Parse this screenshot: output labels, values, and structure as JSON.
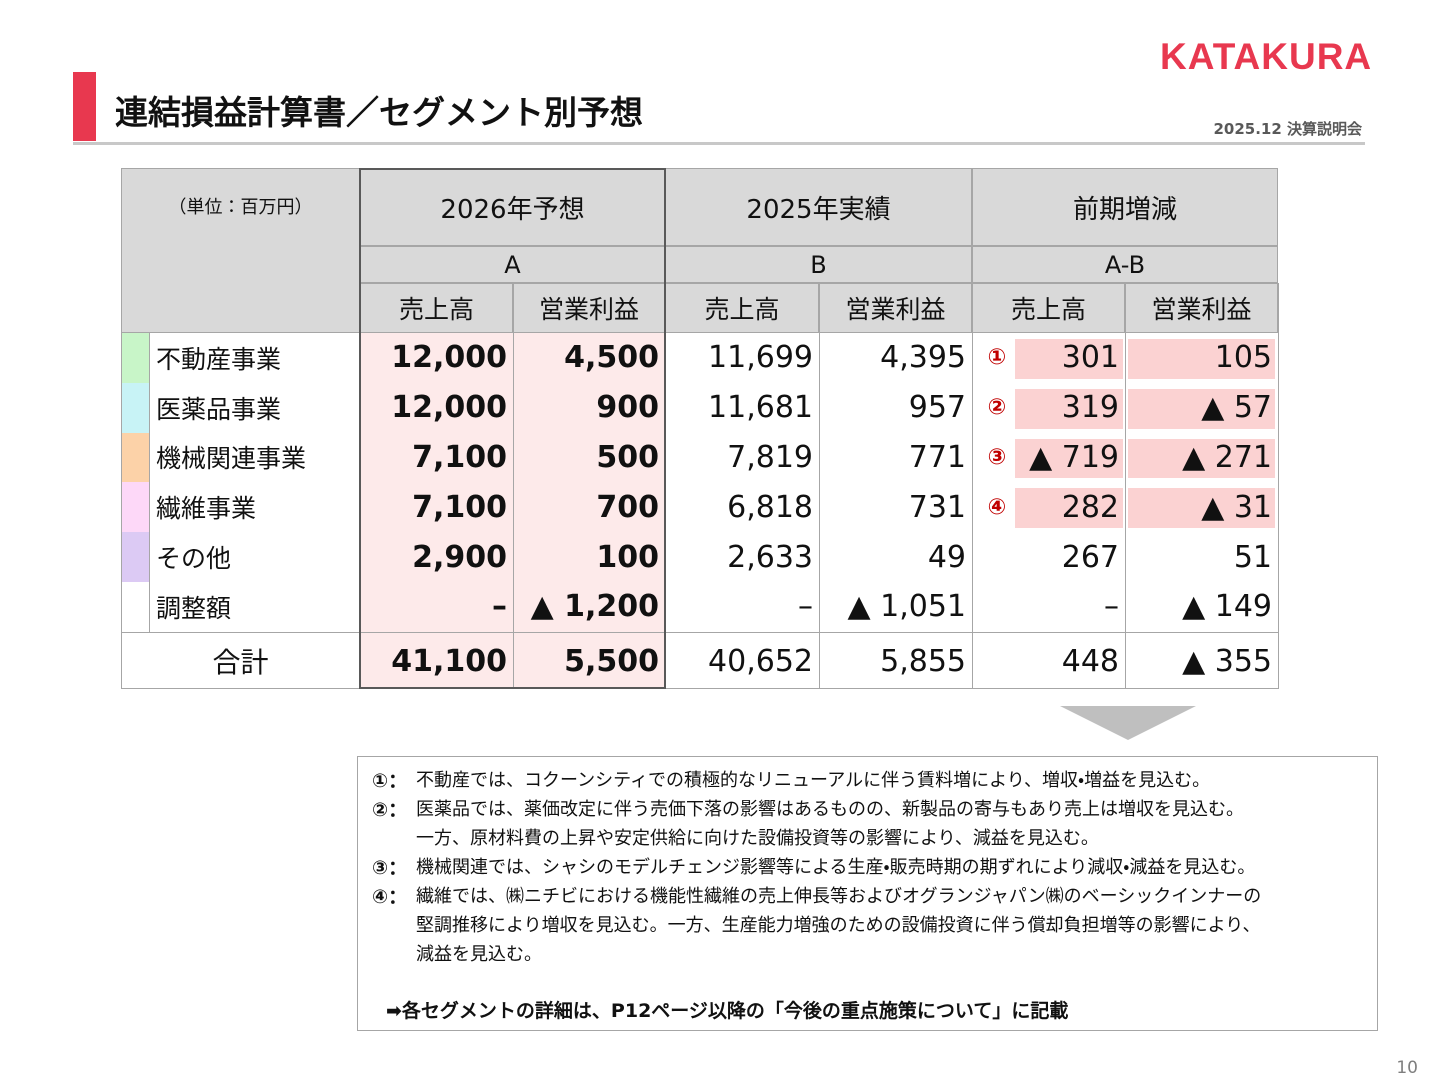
{
  "header": {
    "logo": "KATAKURA",
    "title": "連結損益計算書／セグメント別予想",
    "subtitle": "2025.12 決算説明会"
  },
  "table": {
    "unit": "（単位：百万円）",
    "groups": [
      {
        "title": "2026年予想",
        "sub": "A"
      },
      {
        "title": "2025年実績",
        "sub": "B"
      },
      {
        "title": "前期増減",
        "sub": "A-B"
      }
    ],
    "columns": [
      "売上高",
      "営業利益",
      "売上高",
      "営業利益",
      "売上高",
      "営業利益"
    ],
    "rows": [
      {
        "label": "不動産事業",
        "color": "#c8f5c8",
        "marker": "①",
        "cells": [
          "12,000",
          "4,500",
          "11,699",
          "4,395",
          "301",
          "105"
        ]
      },
      {
        "label": "医薬品事業",
        "color": "#c8f3f6",
        "marker": "②",
        "cells": [
          "12,000",
          "900",
          "11,681",
          "957",
          "319",
          "▲ 57"
        ]
      },
      {
        "label": "機械関連事業",
        "color": "#fcd2a8",
        "marker": "③",
        "cells": [
          "7,100",
          "500",
          "7,819",
          "771",
          "▲ 719",
          "▲ 271"
        ]
      },
      {
        "label": "繊維事業",
        "color": "#fdd8f8",
        "marker": "④",
        "cells": [
          "7,100",
          "700",
          "6,818",
          "731",
          "282",
          "▲ 31"
        ]
      },
      {
        "label": "その他",
        "color": "#dccaf4",
        "cells": [
          "2,900",
          "100",
          "2,633",
          "49",
          "267",
          "51"
        ]
      },
      {
        "label": "調整額",
        "color": "#ffffff",
        "cells": [
          "–",
          "▲ 1,200",
          "–",
          "▲ 1,051",
          "–",
          "▲ 149"
        ]
      }
    ],
    "total": {
      "label": "合計",
      "cells": [
        "41,100",
        "5,500",
        "40,652",
        "5,855",
        "448",
        "▲ 355"
      ]
    }
  },
  "notes": [
    {
      "marker": "①：",
      "lines": [
        "不動産では、コクーンシティでの積極的なリニューアルに伴う賃料増により、増収・増益を見込む。"
      ]
    },
    {
      "marker": "②：",
      "lines": [
        "医薬品では、薬価改定に伴う売価下落の影響はあるものの、新製品の寄与もあり売上は増収を見込む。",
        "一方、原材料費の上昇や安定供給に向けた設備投資等の影響により、減益を見込む。"
      ]
    },
    {
      "marker": "③：",
      "lines": [
        "機械関連では、シャシのモデルチェンジ影響等による生産・販売時期の期ずれにより減収・減益を見込む。"
      ]
    },
    {
      "marker": "④：",
      "lines": [
        "繊維では、㈱ニチビにおける機能性繊維の売上伸長等およびオグランジャパン㈱のベーシックインナーの",
        "堅調推移により増収を見込む。一方、生産能力増強のための設備投資に伴う償却負担増等の影響により、",
        "減益を見込む。"
      ]
    }
  ],
  "footnote": "➡各セグメントの詳細は、P12ページ以降の「今後の重点施策について」に記載",
  "page": "10"
}
